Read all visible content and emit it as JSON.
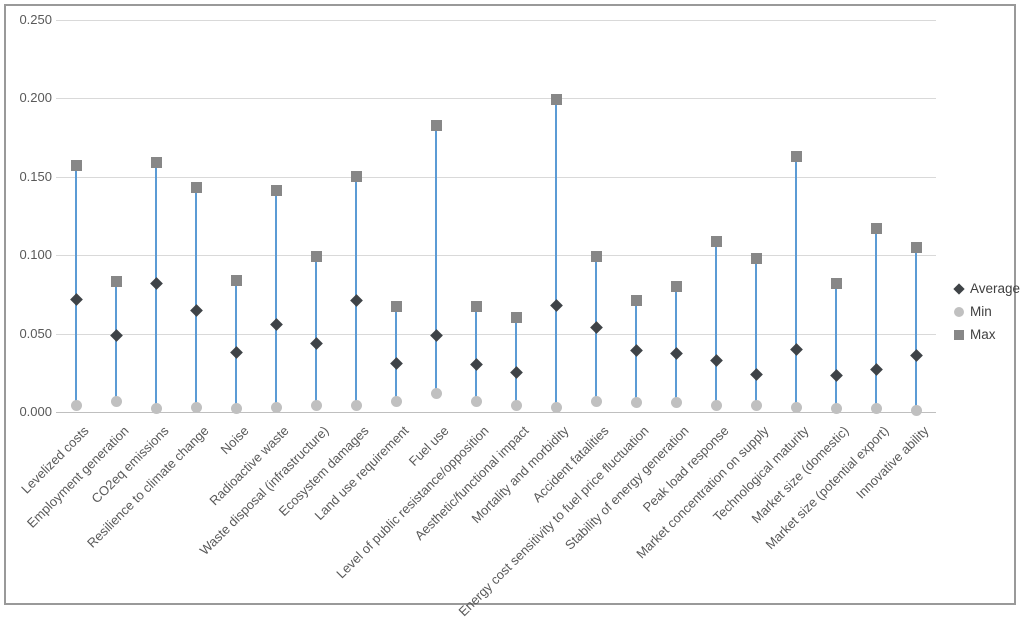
{
  "chart_data": {
    "type": "scatter",
    "subtype": "high-low-range-with-average",
    "title": "",
    "xlabel": "",
    "ylabel": "",
    "ylim": [
      0,
      0.25
    ],
    "grid": true,
    "legend_position": "right",
    "y_ticks": [
      "0.000",
      "0.050",
      "0.100",
      "0.150",
      "0.200",
      "0.250"
    ],
    "y_tick_values": [
      0,
      0.05,
      0.1,
      0.15,
      0.2,
      0.25
    ],
    "categories": [
      "Levelized costs",
      "Employment generation",
      "CO2eq emissions",
      "Resilience to climate change",
      "Noise",
      "Radioactive waste",
      "Waste disposal (infrastructure)",
      "Ecosystem damages",
      "Land use requirement",
      "Fuel use",
      "Level of public resistance/opposition",
      "Aesthetic/functional impact",
      "Mortality and morbidity",
      "Accident fatalities",
      "Energy cost sensitivity to fuel price fluctuation",
      "Stability of energy generation",
      "Peak load response",
      "Market concentration on supply",
      "Technological maturity",
      "Market size (domestic)",
      "Market size (potential export)",
      "Innovative ability"
    ],
    "series": [
      {
        "name": "Average",
        "marker": "diamond",
        "color": "#3f4347",
        "values": [
          0.072,
          0.049,
          0.082,
          0.065,
          0.038,
          0.056,
          0.044,
          0.071,
          0.031,
          0.049,
          0.03,
          0.025,
          0.068,
          0.054,
          0.039,
          0.037,
          0.033,
          0.024,
          0.04,
          0.023,
          0.027,
          0.036
        ]
      },
      {
        "name": "Min",
        "marker": "circle",
        "color": "#c0c0c0",
        "values": [
          0.004,
          0.007,
          0.002,
          0.003,
          0.002,
          0.003,
          0.004,
          0.004,
          0.007,
          0.012,
          0.007,
          0.004,
          0.003,
          0.007,
          0.006,
          0.006,
          0.004,
          0.004,
          0.003,
          0.002,
          0.002,
          0.001
        ]
      },
      {
        "name": "Max",
        "marker": "square",
        "color": "#878787",
        "values": [
          0.157,
          0.083,
          0.159,
          0.143,
          0.084,
          0.141,
          0.099,
          0.15,
          0.067,
          0.183,
          0.067,
          0.06,
          0.199,
          0.099,
          0.071,
          0.08,
          0.109,
          0.098,
          0.163,
          0.082,
          0.117,
          0.105
        ]
      }
    ],
    "colors": {
      "hi_lo_line": "#5b9bd5",
      "gridline": "#d9d9d9",
      "axis_line": "#bfbfbf",
      "tick_label": "#595959",
      "legend_text": "#404040",
      "frame_border": "#999999",
      "background": "#ffffff"
    }
  }
}
